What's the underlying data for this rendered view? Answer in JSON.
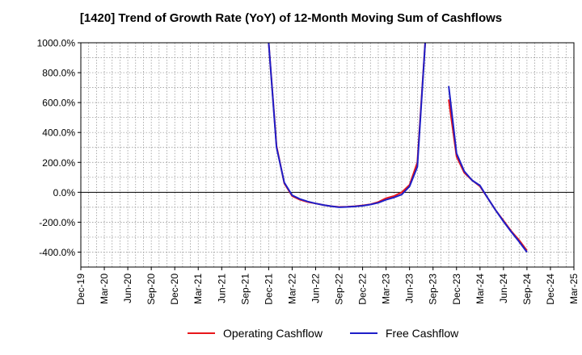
{
  "chart_data": {
    "type": "line",
    "title": "[1420]  Trend of Growth Rate (YoY) of 12-Month Moving Sum of Cashflows",
    "xlabel": "",
    "ylabel": "",
    "ylim": [
      -500,
      1000
    ],
    "y_ticks": [
      -400,
      -200,
      0,
      200,
      400,
      600,
      800,
      1000
    ],
    "y_tick_labels": [
      "-400.0%",
      "-200.0%",
      "0.0%",
      "200.0%",
      "400.0%",
      "600.0%",
      "800.0%",
      "1000.0%"
    ],
    "x_tick_labels": [
      "Dec-19",
      "Mar-20",
      "Jun-20",
      "Sep-20",
      "Dec-20",
      "Mar-21",
      "Jun-21",
      "Sep-21",
      "Dec-21",
      "Mar-22",
      "Jun-22",
      "Sep-22",
      "Dec-22",
      "Mar-23",
      "Jun-23",
      "Sep-23",
      "Dec-23",
      "Mar-24",
      "Jun-24",
      "Sep-24",
      "Dec-24",
      "Mar-25"
    ],
    "x_start": "Dec-19",
    "x_end": "Mar-25",
    "grid": true,
    "legend_position": "bottom",
    "series": [
      {
        "name": "Operating Cashflow",
        "color": "#e8161a",
        "segments": [
          [
            [
              "Dec-21",
              1000
            ],
            [
              "Jan-22",
              310
            ],
            [
              "Feb-22",
              60
            ],
            [
              "Mar-22",
              -25
            ],
            [
              "Apr-22",
              -50
            ],
            [
              "May-22",
              -65
            ],
            [
              "Jun-22",
              -75
            ],
            [
              "Jul-22",
              -85
            ],
            [
              "Aug-22",
              -93
            ],
            [
              "Sep-22",
              -98
            ],
            [
              "Oct-22",
              -97
            ],
            [
              "Nov-22",
              -93
            ],
            [
              "Dec-22",
              -88
            ],
            [
              "Jan-23",
              -80
            ],
            [
              "Feb-23",
              -65
            ],
            [
              "Mar-23",
              -40
            ],
            [
              "Apr-23",
              -25
            ],
            [
              "May-23",
              0
            ],
            [
              "Jun-23",
              50
            ],
            [
              "Jul-23",
              200
            ],
            [
              "Aug-23",
              1000
            ]
          ],
          [
            [
              "Nov-23",
              620
            ],
            [
              "Dec-23",
              240
            ],
            [
              "Jan-24",
              130
            ],
            [
              "Feb-24",
              80
            ],
            [
              "Mar-24",
              40
            ],
            [
              "Apr-24",
              -40
            ],
            [
              "May-24",
              -120
            ],
            [
              "Jun-24",
              -190
            ],
            [
              "Jul-24",
              -260
            ],
            [
              "Aug-24",
              -320
            ],
            [
              "Sep-24",
              -390
            ]
          ]
        ]
      },
      {
        "name": "Free Cashflow",
        "color": "#1e1ec8",
        "segments": [
          [
            [
              "Dec-21",
              1000
            ],
            [
              "Jan-22",
              300
            ],
            [
              "Feb-22",
              65
            ],
            [
              "Mar-22",
              -20
            ],
            [
              "Apr-22",
              -45
            ],
            [
              "May-22",
              -62
            ],
            [
              "Jun-22",
              -75
            ],
            [
              "Jul-22",
              -85
            ],
            [
              "Aug-22",
              -93
            ],
            [
              "Sep-22",
              -100
            ],
            [
              "Oct-22",
              -98
            ],
            [
              "Nov-22",
              -95
            ],
            [
              "Dec-22",
              -90
            ],
            [
              "Jan-23",
              -82
            ],
            [
              "Feb-23",
              -70
            ],
            [
              "Mar-23",
              -50
            ],
            [
              "Apr-23",
              -35
            ],
            [
              "May-23",
              -15
            ],
            [
              "Jun-23",
              40
            ],
            [
              "Jul-23",
              170
            ],
            [
              "Aug-23",
              1000
            ]
          ],
          [
            [
              "Nov-23",
              710
            ],
            [
              "Dec-23",
              260
            ],
            [
              "Jan-24",
              140
            ],
            [
              "Feb-24",
              80
            ],
            [
              "Mar-24",
              45
            ],
            [
              "Apr-24",
              -40
            ],
            [
              "May-24",
              -120
            ],
            [
              "Jun-24",
              -195
            ],
            [
              "Jul-24",
              -265
            ],
            [
              "Aug-24",
              -330
            ],
            [
              "Sep-24",
              -400
            ]
          ]
        ]
      }
    ]
  }
}
